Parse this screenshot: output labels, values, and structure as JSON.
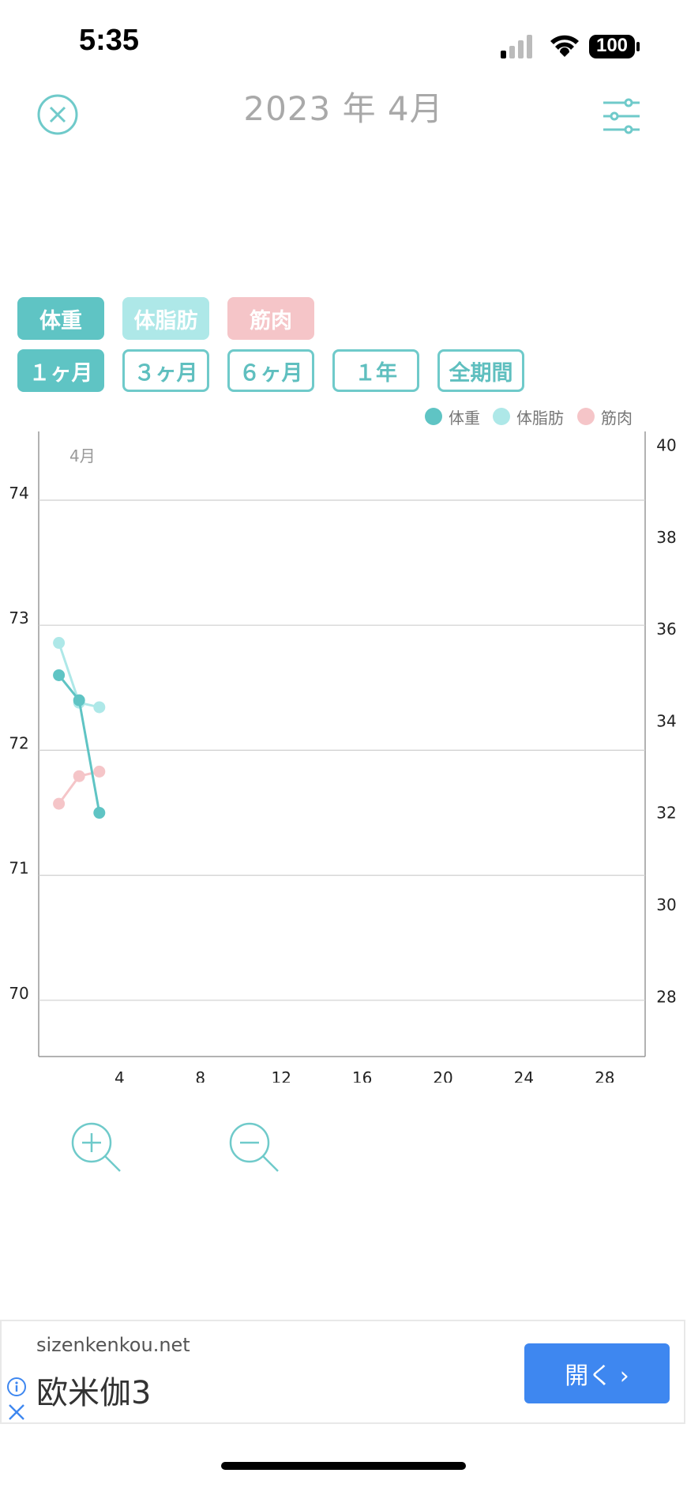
{
  "status_bar": {
    "time": "5:35",
    "battery": "100"
  },
  "header": {
    "title": "2023 年 4月"
  },
  "metric_tabs": [
    {
      "label": "体重",
      "color": "#5fc4c4",
      "selected": true
    },
    {
      "label": "体脂肪",
      "color": "#aee8e8",
      "selected": false
    },
    {
      "label": "筋肉",
      "color": "#f5c5c8",
      "selected": false
    }
  ],
  "period_tabs": [
    {
      "label": "１ヶ月",
      "selected": true
    },
    {
      "label": "３ヶ月",
      "selected": false
    },
    {
      "label": "６ヶ月",
      "selected": false
    },
    {
      "label": "１年",
      "selected": false
    },
    {
      "label": "全期間",
      "selected": false
    }
  ],
  "legend": [
    {
      "label": "体重",
      "color": "#5fc4c4"
    },
    {
      "label": "体脂肪",
      "color": "#aee8e8"
    },
    {
      "label": "筋肉",
      "color": "#f5c5c8"
    }
  ],
  "chart_data": {
    "type": "line",
    "month_label": "4月",
    "x_ticks": [
      4,
      8,
      12,
      16,
      20,
      24,
      28
    ],
    "xlim": [
      0,
      30
    ],
    "y_left": {
      "ticks": [
        70,
        71,
        72,
        73,
        74
      ],
      "ylim": [
        69.55,
        74.55
      ]
    },
    "y_right": {
      "ticks": [
        28,
        30,
        32,
        34,
        36,
        38,
        40
      ],
      "ylim": [
        26.7,
        40.3
      ]
    },
    "series": [
      {
        "name": "体重",
        "axis": "left",
        "color": "#5fc4c4",
        "x": [
          1,
          2,
          3
        ],
        "y": [
          72.6,
          72.4,
          71.5
        ]
      },
      {
        "name": "体脂肪",
        "axis": "right",
        "color": "#aee8e8",
        "x": [
          1,
          2,
          3
        ],
        "y": [
          35.7,
          34.4,
          34.3
        ]
      },
      {
        "name": "筋肉",
        "axis": "right",
        "color": "#f5c5c8",
        "x": [
          1,
          2,
          3
        ],
        "y": [
          32.2,
          32.8,
          32.9
        ]
      }
    ]
  },
  "ad": {
    "domain": "sizenkenkou.net",
    "title": "欧米伽3",
    "button_label": "開く  ›",
    "accent": "#3e87f0"
  }
}
